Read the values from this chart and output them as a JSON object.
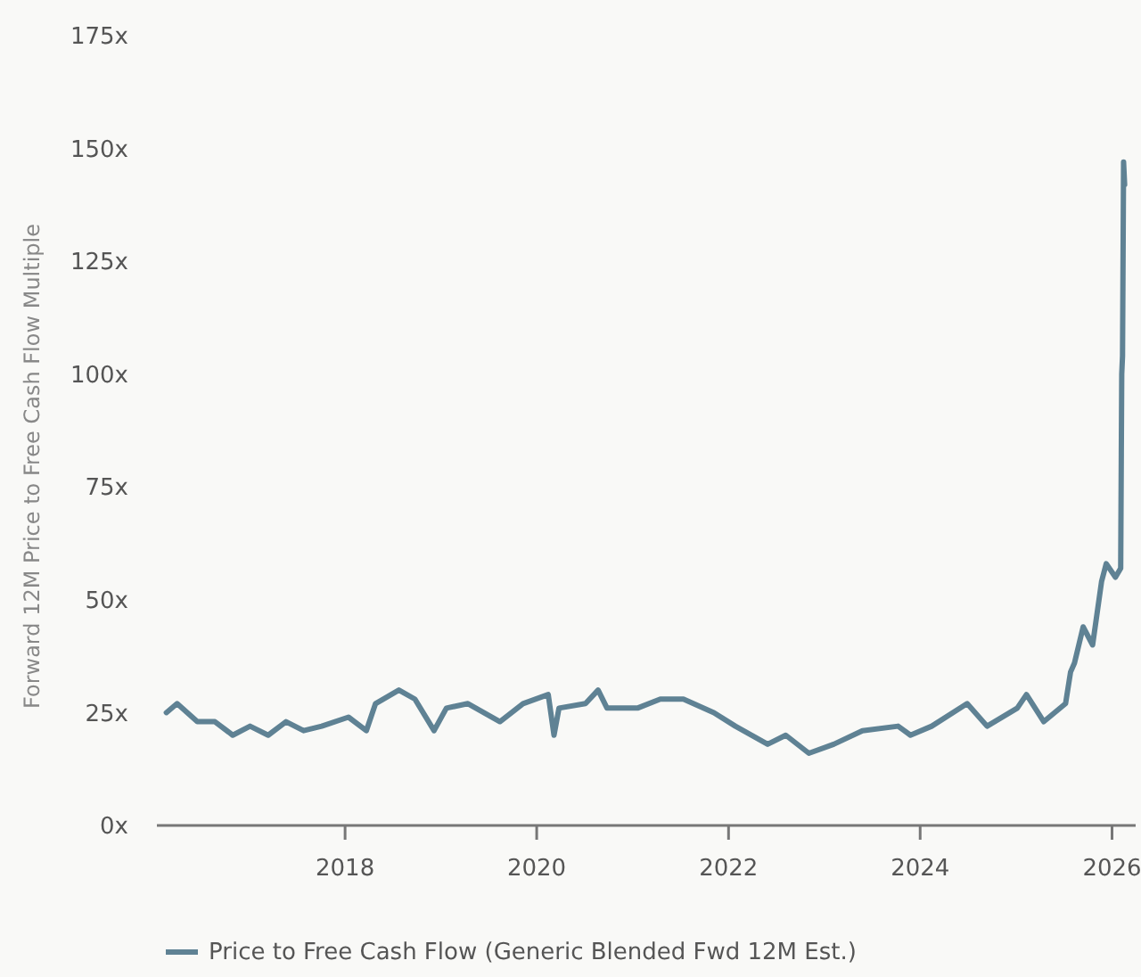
{
  "chart_data": {
    "type": "line",
    "ylabel": "Forward 12M Price to Free Cash Flow Multiple",
    "legend": "bottom",
    "xlim": [
      "2016-01-15",
      "2026-04-01"
    ],
    "xticks": [
      "2018",
      "2020",
      "2022",
      "2024",
      "2026"
    ],
    "ylim": [
      0,
      175
    ],
    "yticks": [
      {
        "value": 0,
        "label": "0x"
      },
      {
        "value": 25,
        "label": "25x"
      },
      {
        "value": 50,
        "label": "50x"
      },
      {
        "value": 75,
        "label": "75x"
      },
      {
        "value": 100,
        "label": "100x"
      },
      {
        "value": 125,
        "label": "125x"
      },
      {
        "value": 150,
        "label": "150x"
      },
      {
        "value": 175,
        "label": "175x"
      }
    ],
    "x": [
      "2016-02-20",
      "2016-04-01",
      "2016-06-17",
      "2016-08-23",
      "2016-10-30",
      "2017-01-04",
      "2017-03-14",
      "2017-05-21",
      "2017-07-27",
      "2017-10-04",
      "2018-01-14",
      "2018-03-23",
      "2018-04-27",
      "2018-07-25",
      "2018-09-24",
      "2018-12-06",
      "2019-01-22",
      "2019-04-14",
      "2019-08-14",
      "2019-11-10",
      "2020-02-14",
      "2020-03-07",
      "2020-03-26",
      "2020-07-05",
      "2020-08-22",
      "2020-09-25",
      "2021-01-19",
      "2021-04-16",
      "2021-07-13",
      "2021-11-06",
      "2022-01-27",
      "2022-05-30",
      "2022-08-07",
      "2022-11-03",
      "2023-02-06",
      "2023-05-26",
      "2023-10-09",
      "2023-11-25",
      "2024-02-14",
      "2024-06-28",
      "2024-09-12",
      "2025-01-05",
      "2025-02-09",
      "2025-04-16",
      "2025-07-08",
      "2025-07-27",
      "2025-08-11",
      "2025-09-13",
      "2025-10-19",
      "2025-11-22",
      "2025-12-10",
      "2026-01-14",
      "2026-02-03",
      "2026-02-07",
      "2026-02-10",
      "2026-02-14",
      "2026-02-18"
    ],
    "series": [
      {
        "name": "Price to Free Cash Flow (Generic Blended Fwd 12M Est.)",
        "color": "#5f8294",
        "values": [
          25,
          27,
          23,
          23,
          20,
          22,
          20,
          23,
          21,
          22,
          24,
          21,
          27,
          30,
          28,
          21,
          26,
          27,
          23,
          27,
          29,
          20,
          26,
          27,
          30,
          26,
          26,
          28,
          28,
          25,
          22,
          18,
          20,
          16,
          18,
          21,
          22,
          20,
          22,
          27,
          22,
          26,
          29,
          23,
          27,
          34,
          36,
          44,
          40,
          54,
          58,
          55,
          57,
          100,
          104,
          147,
          142
        ]
      }
    ]
  }
}
